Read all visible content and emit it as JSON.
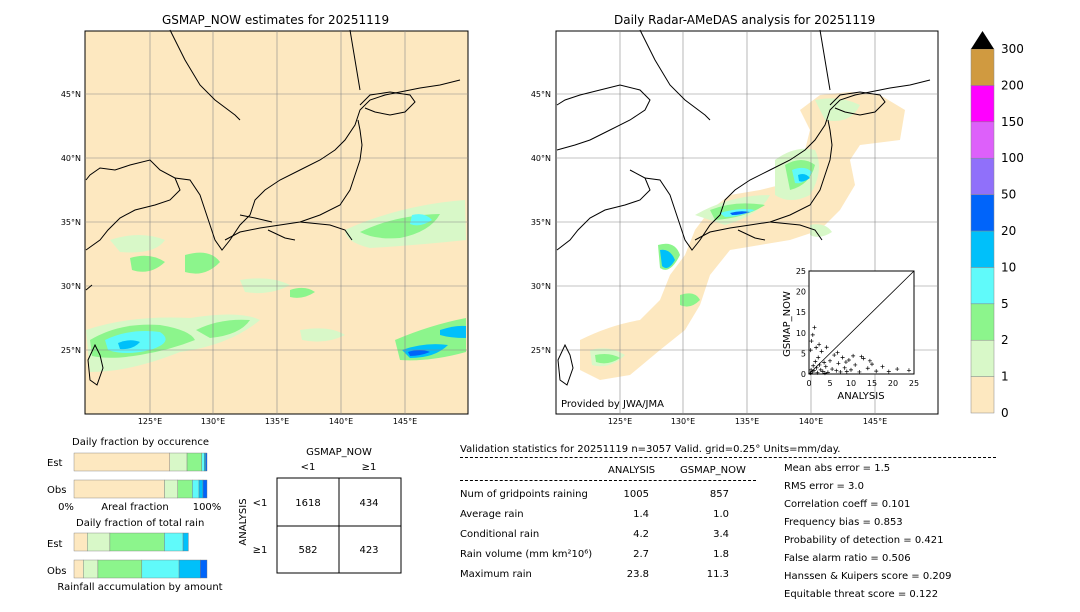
{
  "left_map": {
    "title": "GSMAP_NOW estimates for 20251119",
    "lat_labels": [
      "45°N",
      "40°N",
      "35°N",
      "30°N",
      "25°N"
    ],
    "lon_labels": [
      "125°E",
      "130°E",
      "135°E",
      "140°E",
      "145°E"
    ]
  },
  "right_map": {
    "title": "Daily Radar-AMeDAS analysis for 20251119",
    "lat_labels": [
      "45°N",
      "40°N",
      "35°N",
      "30°N",
      "25°N"
    ],
    "lon_labels": [
      "125°E",
      "130°E",
      "135°E",
      "140°E",
      "145°E"
    ],
    "credit": "Provided by JWA/JMA"
  },
  "colorbar": {
    "ticks": [
      "0",
      "1",
      "2",
      "5",
      "10",
      "20",
      "50",
      "100",
      "150",
      "200",
      "300"
    ],
    "colors": [
      "#fde8c0",
      "#d8f8c8",
      "#8cf58c",
      "#60fafa",
      "#00c0fa",
      "#0064fa",
      "#9070fa",
      "#dd60fa",
      "#ff00ff",
      "#d09a40"
    ],
    "extend_color": "#000000"
  },
  "chart_data": [
    {
      "type": "scatter",
      "title": "",
      "xlabel": "ANALYSIS",
      "ylabel": "GSMAP_NOW",
      "xlim": [
        0,
        25
      ],
      "ylim": [
        0,
        25
      ],
      "xticks": [
        "0",
        "5",
        "10",
        "15",
        "20",
        "25"
      ],
      "yticks": [
        "0",
        "5",
        "10",
        "15",
        "20",
        "25"
      ],
      "marker": "+",
      "points": [
        [
          0.3,
          0.2
        ],
        [
          0.5,
          1.0
        ],
        [
          0.8,
          0.5
        ],
        [
          1.0,
          2.0
        ],
        [
          1.2,
          0.8
        ],
        [
          1.5,
          3.0
        ],
        [
          1.8,
          1.5
        ],
        [
          2.0,
          0.3
        ],
        [
          2.2,
          4.0
        ],
        [
          2.5,
          2.2
        ],
        [
          2.8,
          1.0
        ],
        [
          3.0,
          5.5
        ],
        [
          3.3,
          0.6
        ],
        [
          3.6,
          2.8
        ],
        [
          4.0,
          1.8
        ],
        [
          4.2,
          6.5
        ],
        [
          4.5,
          0.4
        ],
        [
          5.0,
          3.2
        ],
        [
          5.5,
          1.2
        ],
        [
          6.0,
          4.6
        ],
        [
          6.5,
          0.8
        ],
        [
          7.0,
          2.6
        ],
        [
          7.5,
          0.5
        ],
        [
          8.0,
          4.0
        ],
        [
          8.5,
          1.5
        ],
        [
          9.0,
          0.6
        ],
        [
          9.5,
          3.4
        ],
        [
          10.0,
          1.0
        ],
        [
          11.0,
          2.2
        ],
        [
          12.0,
          0.5
        ],
        [
          13.0,
          3.8
        ],
        [
          14.0,
          1.4
        ],
        [
          15.0,
          2.4
        ],
        [
          16.0,
          0.7
        ],
        [
          17.5,
          1.8
        ],
        [
          19.0,
          0.6
        ],
        [
          21.0,
          1.2
        ],
        [
          23.8,
          0.9
        ],
        [
          0.6,
          8.0
        ],
        [
          1.3,
          11.3
        ],
        [
          0.9,
          9.5
        ],
        [
          2.4,
          7.2
        ],
        [
          1.7,
          6.4
        ],
        [
          0.4,
          5.8
        ],
        [
          3.8,
          0.2
        ],
        [
          12.5,
          4.2
        ],
        [
          14.5,
          3.2
        ],
        [
          8.8,
          2.9
        ],
        [
          10.5,
          4.4
        ],
        [
          6.8,
          5.2
        ]
      ]
    },
    {
      "type": "bar",
      "title": "Daily fraction by occurence",
      "orientation": "horizontal",
      "stacked": true,
      "categories": [
        "Est",
        "Obs"
      ],
      "xlabel": "Areal fraction",
      "xticks": [
        "0%",
        "100%"
      ],
      "series": [
        {
          "color": "#fde8c0",
          "values": [
            0.72,
            0.68
          ]
        },
        {
          "color": "#d8f8c8",
          "values": [
            0.13,
            0.1
          ]
        },
        {
          "color": "#8cf58c",
          "values": [
            0.11,
            0.11
          ]
        },
        {
          "color": "#60fafa",
          "values": [
            0.02,
            0.05
          ]
        },
        {
          "color": "#00c0fa",
          "values": [
            0.01,
            0.03
          ]
        },
        {
          "color": "#0064fa",
          "values": [
            0.01,
            0.03
          ]
        }
      ]
    },
    {
      "type": "bar",
      "title": "Daily fraction of total rain",
      "orientation": "horizontal",
      "stacked": true,
      "categories": [
        "Est",
        "Obs"
      ],
      "xlabel": "Rainfall accumulation by amount",
      "series": [
        {
          "color": "#fde8c0",
          "values": [
            0.1,
            0.07
          ]
        },
        {
          "color": "#d8f8c8",
          "values": [
            0.17,
            0.11
          ]
        },
        {
          "color": "#8cf58c",
          "values": [
            0.41,
            0.33
          ]
        },
        {
          "color": "#60fafa",
          "values": [
            0.14,
            0.28
          ]
        },
        {
          "color": "#00c0fa",
          "values": [
            0.04,
            0.16
          ]
        },
        {
          "color": "#0064fa",
          "values": [
            0.0,
            0.05
          ]
        }
      ]
    },
    {
      "type": "table",
      "title": "GSMAP_NOW",
      "col_headers": [
        "<1",
        "≥1"
      ],
      "row_label": "ANALYSIS",
      "row_headers": [
        "<1",
        "≥1"
      ],
      "cells": [
        [
          "1618",
          "434"
        ],
        [
          "582",
          "423"
        ]
      ]
    }
  ],
  "stats": {
    "header": "Validation statistics for 20251119  n=3057 Valid. grid=0.25° Units=mm/day.",
    "col_analysis": "ANALYSIS",
    "col_gsmap": "GSMAP_NOW",
    "rows": [
      {
        "label": "Num of gridpoints raining",
        "analysis": "1005",
        "gsmap": "857"
      },
      {
        "label": "Average rain",
        "analysis": "1.4",
        "gsmap": "1.0"
      },
      {
        "label": "Conditional rain",
        "analysis": "4.2",
        "gsmap": "3.4"
      },
      {
        "label": "Rain volume (mm km²10⁶)",
        "analysis": "2.7",
        "gsmap": "1.8"
      },
      {
        "label": "Maximum rain",
        "analysis": "23.8",
        "gsmap": "11.3"
      }
    ],
    "scores": [
      "Mean abs error =    1.5",
      "RMS error =    3.0",
      "Correlation coeff =  0.101",
      "Frequency bias =  0.853",
      "Probability of detection =  0.421",
      "False alarm ratio =  0.506",
      "Hanssen & Kuipers score =  0.209",
      "Equitable threat score =  0.122"
    ]
  }
}
